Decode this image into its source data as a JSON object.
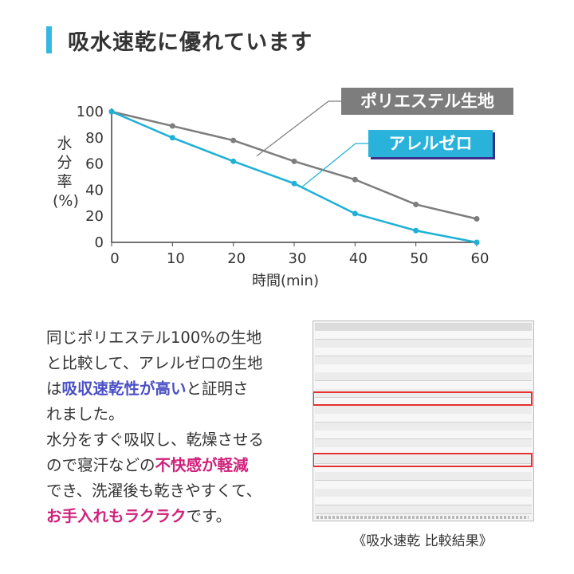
{
  "heading": "吸水速乾に優れています",
  "chart_data": {
    "type": "line",
    "x": [
      0,
      10,
      20,
      30,
      40,
      50,
      60
    ],
    "xlabel": "時間(min)",
    "ylabel": "水分率(%)",
    "xlim": [
      0,
      60
    ],
    "ylim": [
      0,
      100
    ],
    "x_ticks": [
      "0",
      "10",
      "20",
      "30",
      "40",
      "50",
      "60"
    ],
    "y_ticks": [
      "0",
      "20",
      "40",
      "60",
      "80",
      "100"
    ],
    "grid": false,
    "series": [
      {
        "name": "ポリエステル生地",
        "color": "#7d7d7d",
        "label_bg": "#7d7d7d",
        "values": [
          100,
          89,
          78,
          62,
          48,
          29,
          18
        ]
      },
      {
        "name": "アレルゼロ",
        "color": "#1fb0d6",
        "label_bg": "#2ab3da",
        "values": [
          100,
          80,
          62,
          45,
          22,
          9,
          0
        ]
      }
    ]
  },
  "body": {
    "line1": "同じポリエステル100%の生地",
    "line2": "と比較して、アレルゼロの生地",
    "line3_pre": "は",
    "line3_hl": "吸収速乾性が高い",
    "line3_post": "と証明さ",
    "line4": "れました。",
    "line5": "水分をすぐ吸収し、乾燥させる",
    "line6_pre": "ので寝汗などの",
    "line6_hl": "不快感が軽減",
    "line7": "でき、洗濯後も乾きやすくて、",
    "line8_hl": "お手入れもラクラク",
    "line8_post": "です。"
  },
  "caption": "《吸水速乾 比較結果》"
}
